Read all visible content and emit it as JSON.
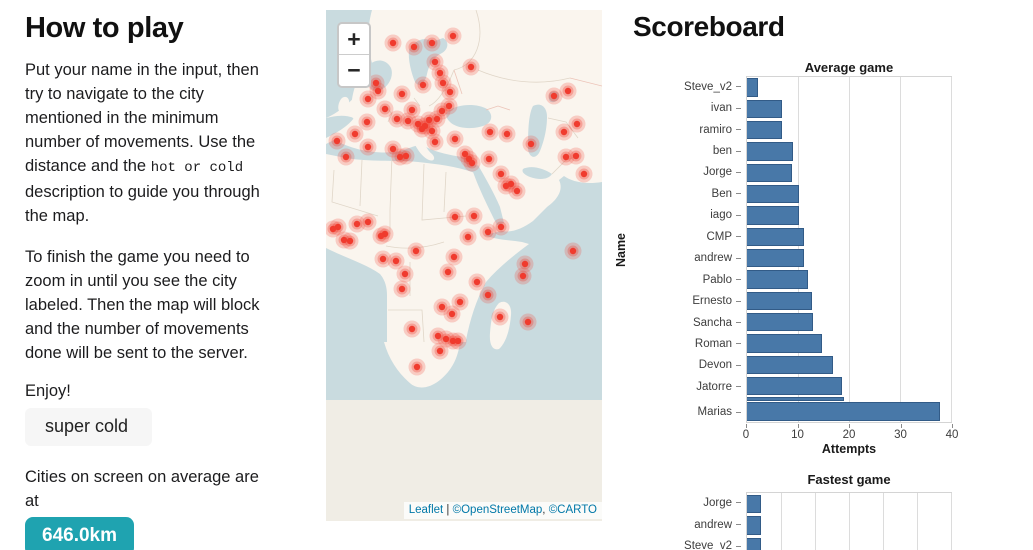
{
  "left_panel": {
    "title": "How to play",
    "p1_pre": "Put your name in the input, then\ntry to navigate to the city\nmentioned in the minimum\nnumber of movements. Use the\ndistance and the ",
    "p1_code": "hot or cold",
    "p1_post": "description to guide you through\nthe map.",
    "p2": "To finish the game you need to\nzoom in until you see the city\nlabeled. Then the map will block\nand the number of movements\ndone will be sent to the server.",
    "enjoy": "Enjoy!",
    "hint_value": "super cold",
    "cities_text": "Cities on screen on average are\nat",
    "distance_value": "646.0km"
  },
  "map": {
    "zoom_in_label": "+",
    "zoom_out_label": "−",
    "attribution": {
      "leaflet": "Leaflet",
      "separator": " | ",
      "osm": "©OpenStreetMap",
      "comma": ", ",
      "carto": "©CARTO"
    },
    "markers": [
      [
        67,
        33
      ],
      [
        88,
        37
      ],
      [
        106,
        33
      ],
      [
        127,
        26
      ],
      [
        109,
        52
      ],
      [
        114,
        63
      ],
      [
        145,
        57
      ],
      [
        117,
        73
      ],
      [
        50,
        73
      ],
      [
        52,
        81
      ],
      [
        42,
        89
      ],
      [
        59,
        99
      ],
      [
        76,
        84
      ],
      [
        97,
        75
      ],
      [
        86,
        100
      ],
      [
        71,
        109
      ],
      [
        82,
        111
      ],
      [
        92,
        114
      ],
      [
        99,
        116
      ],
      [
        103,
        110
      ],
      [
        96,
        119
      ],
      [
        106,
        121
      ],
      [
        111,
        109
      ],
      [
        116,
        101
      ],
      [
        124,
        82
      ],
      [
        123,
        96
      ],
      [
        41,
        112
      ],
      [
        29,
        124
      ],
      [
        11,
        131
      ],
      [
        42,
        137
      ],
      [
        67,
        139
      ],
      [
        20,
        147
      ],
      [
        74,
        147
      ],
      [
        80,
        146
      ],
      [
        109,
        132
      ],
      [
        129,
        129
      ],
      [
        164,
        122
      ],
      [
        181,
        124
      ],
      [
        139,
        144
      ],
      [
        143,
        149
      ],
      [
        146,
        153
      ],
      [
        163,
        149
      ],
      [
        175,
        164
      ],
      [
        185,
        174
      ],
      [
        180,
        176
      ],
      [
        191,
        181
      ],
      [
        242,
        81
      ],
      [
        251,
        114
      ],
      [
        238,
        122
      ],
      [
        240,
        147
      ],
      [
        250,
        146
      ],
      [
        258,
        164
      ],
      [
        205,
        134
      ],
      [
        228,
        86
      ],
      [
        12,
        217
      ],
      [
        31,
        214
      ],
      [
        42,
        212
      ],
      [
        24,
        231
      ],
      [
        18,
        230
      ],
      [
        7,
        219
      ],
      [
        59,
        224
      ],
      [
        55,
        226
      ],
      [
        129,
        207
      ],
      [
        148,
        206
      ],
      [
        142,
        227
      ],
      [
        162,
        222
      ],
      [
        57,
        249
      ],
      [
        70,
        251
      ],
      [
        90,
        241
      ],
      [
        128,
        247
      ],
      [
        175,
        217
      ],
      [
        247,
        241
      ],
      [
        199,
        254
      ],
      [
        79,
        264
      ],
      [
        122,
        262
      ],
      [
        151,
        272
      ],
      [
        197,
        266
      ],
      [
        76,
        279
      ],
      [
        162,
        285
      ],
      [
        134,
        292
      ],
      [
        116,
        297
      ],
      [
        126,
        304
      ],
      [
        174,
        307
      ],
      [
        202,
        312
      ],
      [
        86,
        319
      ],
      [
        112,
        326
      ],
      [
        120,
        329
      ],
      [
        127,
        331
      ],
      [
        132,
        331
      ],
      [
        114,
        341
      ],
      [
        91,
        357
      ]
    ]
  },
  "scoreboard": {
    "title": "Scoreboard"
  },
  "chart_data": [
    {
      "type": "bar",
      "orientation": "horizontal",
      "title": "Average game",
      "xlabel": "Attempts",
      "ylabel": "Name",
      "xlim": [
        0,
        40
      ],
      "xticks": [
        0,
        10,
        20,
        30,
        40
      ],
      "grid": true,
      "categories": [
        "Steve_v2",
        "ivan",
        "ramiro",
        "ben",
        "Jorge",
        "Ben",
        "iago",
        "CMP",
        "andrew",
        "Pablo",
        "Ernesto",
        "Sancha",
        "Roman",
        "Devon",
        "Jatorre",
        "",
        "Marias"
      ],
      "values": [
        2.2,
        6.8,
        6.8,
        9.1,
        8.9,
        10.1,
        10.1,
        11.2,
        11.2,
        12.0,
        12.7,
        12.9,
        14.8,
        16.9,
        18.6,
        19.1,
        37.8
      ],
      "thin_rows": [
        15
      ]
    },
    {
      "type": "bar",
      "orientation": "horizontal",
      "title": "Fastest game",
      "xlabel": "",
      "ylabel": "",
      "xlim": [
        0,
        3
      ],
      "gridline_step": 0.5,
      "grid": true,
      "categories": [
        "Jorge",
        "andrew",
        "Steve_v2"
      ],
      "values": [
        0.2,
        0.2,
        0.2
      ]
    }
  ],
  "colors": {
    "bar": "#4878a8",
    "marker_red": "#f03b2e",
    "accent_teal": "#1fa3b0",
    "water": "#c9dbdf",
    "land": "#faf5ee",
    "no_tile": "#f0ede5",
    "link_blue": "#0078A8"
  }
}
